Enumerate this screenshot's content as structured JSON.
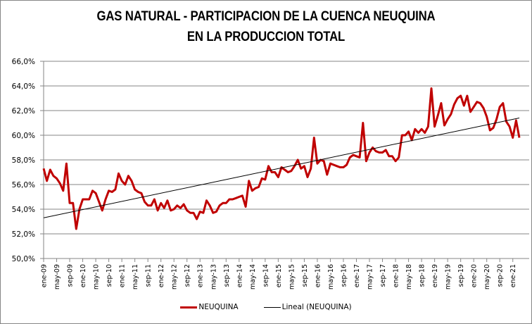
{
  "chart_data": {
    "type": "line",
    "title_lines": [
      "GAS NATURAL - PARTICIPACION DE LA CUENCA NEUQUINA",
      "EN LA PRODUCCION TOTAL"
    ],
    "xlabel": "",
    "ylabel": "",
    "ylim": [
      50,
      66
    ],
    "y_ticks": [
      50,
      52,
      54,
      56,
      58,
      60,
      62,
      64,
      66
    ],
    "y_tick_labels": [
      "50,0%",
      "52,0%",
      "54,0%",
      "56,0%",
      "58,0%",
      "60,0%",
      "62,0%",
      "64,0%",
      "66,0%"
    ],
    "x_tick_labels": [
      "ene-09",
      "may-09",
      "sep-09",
      "ene-10",
      "may-10",
      "sep-10",
      "ene-11",
      "may-11",
      "sep-11",
      "ene-12",
      "may-12",
      "sep-12",
      "ene-13",
      "may-13",
      "sep-13",
      "ene-14",
      "may-14",
      "sep-14",
      "ene-15",
      "may-15",
      "sep-15",
      "ene-16",
      "may-16",
      "sep-16",
      "ene-17",
      "may-17",
      "sep-17",
      "ene-18",
      "may-18",
      "sep-18",
      "ene-19",
      "may-19",
      "sep-19",
      "ene-20",
      "may-20",
      "sep-20",
      "ene-21"
    ],
    "x_tick_step_months": 4,
    "grid": "horizontal",
    "legend_position": "bottom",
    "series": [
      {
        "name": "NEUQUINA",
        "color": "#C00000",
        "start": "ene-09",
        "frequency": "monthly",
        "values": [
          57.3,
          56.3,
          57.2,
          56.7,
          56.5,
          56.1,
          55.5,
          57.7,
          54.5,
          54.5,
          52.4,
          54.0,
          54.8,
          54.8,
          54.8,
          55.5,
          55.3,
          54.6,
          53.9,
          54.8,
          55.5,
          55.4,
          55.6,
          56.9,
          56.3,
          56.0,
          56.7,
          56.3,
          55.6,
          55.4,
          55.3,
          54.6,
          54.3,
          54.3,
          54.8,
          53.9,
          54.5,
          54.1,
          54.7,
          53.9,
          54.0,
          54.3,
          54.1,
          54.4,
          53.9,
          53.7,
          53.7,
          53.2,
          53.8,
          53.7,
          54.7,
          54.3,
          53.7,
          53.8,
          54.3,
          54.5,
          54.5,
          54.8,
          54.8,
          54.9,
          55.0,
          55.1,
          54.2,
          56.3,
          55.5,
          55.7,
          55.8,
          56.5,
          56.4,
          57.5,
          57.0,
          57.0,
          56.6,
          57.4,
          57.2,
          57.0,
          57.1,
          57.5,
          58.0,
          57.3,
          57.5,
          56.6,
          57.3,
          59.8,
          57.7,
          58.0,
          57.9,
          56.8,
          57.7,
          57.6,
          57.5,
          57.4,
          57.4,
          57.6,
          58.2,
          58.4,
          58.3,
          58.2,
          61.0,
          57.9,
          58.6,
          59.0,
          58.7,
          58.6,
          58.6,
          58.8,
          58.3,
          58.3,
          57.9,
          58.2,
          60.0,
          60.0,
          60.3,
          59.6,
          60.5,
          60.2,
          60.5,
          60.2,
          60.7,
          63.8,
          60.7,
          61.6,
          62.6,
          60.8,
          61.3,
          61.7,
          62.5,
          63.0,
          63.2,
          62.4,
          63.2,
          61.9,
          62.3,
          62.7,
          62.6,
          62.2,
          61.5,
          60.4,
          60.6,
          61.3,
          62.3,
          62.6,
          61.1,
          60.7,
          59.8,
          61.2,
          59.8
        ]
      },
      {
        "name": "Lineal (NEUQUINA)",
        "color": "#000000",
        "kind": "linear-trend",
        "start_value": 53.3,
        "end_value": 61.4
      }
    ]
  }
}
